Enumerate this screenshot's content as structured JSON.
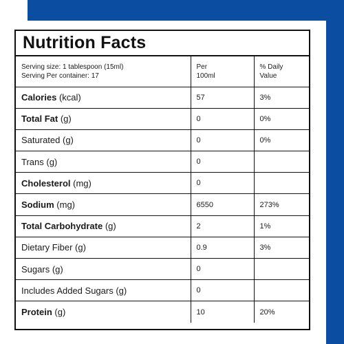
{
  "label_title": "Nutrition Facts",
  "header": {
    "serving_size": "Serving size: 1 tablespoon (15ml)",
    "servings_per_container": "Serving Per container: 17",
    "per_line1": "Per",
    "per_line2": "100ml",
    "dv_line1": "% Daily",
    "dv_line2": "Value"
  },
  "rows": [
    {
      "name": "Calories",
      "unit": "(kcal)",
      "value": "57",
      "dv": "3%",
      "bold": true
    },
    {
      "name": "Total Fat",
      "unit": "(g)",
      "value": "0",
      "dv": "0%",
      "bold": true
    },
    {
      "name": "Saturated",
      "unit": "(g)",
      "value": "0",
      "dv": "0%",
      "bold": false
    },
    {
      "name": "Trans",
      "unit": "(g)",
      "value": "0",
      "dv": "",
      "bold": false
    },
    {
      "name": "Cholesterol",
      "unit": "(mg)",
      "value": "0",
      "dv": "",
      "bold": true
    },
    {
      "name": "Sodium",
      "unit": "(mg)",
      "value": "6550",
      "dv": "273%",
      "bold": true
    },
    {
      "name": "Total Carbohydrate",
      "unit": "(g)",
      "value": "2",
      "dv": "1%",
      "bold": true
    },
    {
      "name": "Dietary Fiber",
      "unit": "(g)",
      "value": "0.9",
      "dv": "3%",
      "bold": false
    },
    {
      "name": "Sugars",
      "unit": "(g)",
      "value": "0",
      "dv": "",
      "bold": false
    },
    {
      "name": "Includes Added Sugars",
      "unit": "(g)",
      "value": "0",
      "dv": "",
      "bold": false
    },
    {
      "name": "Protein",
      "unit": "(g)",
      "value": "10",
      "dv": "20%",
      "bold": true
    }
  ],
  "colors": {
    "accent": "#0a4da1",
    "ink": "#111111"
  }
}
